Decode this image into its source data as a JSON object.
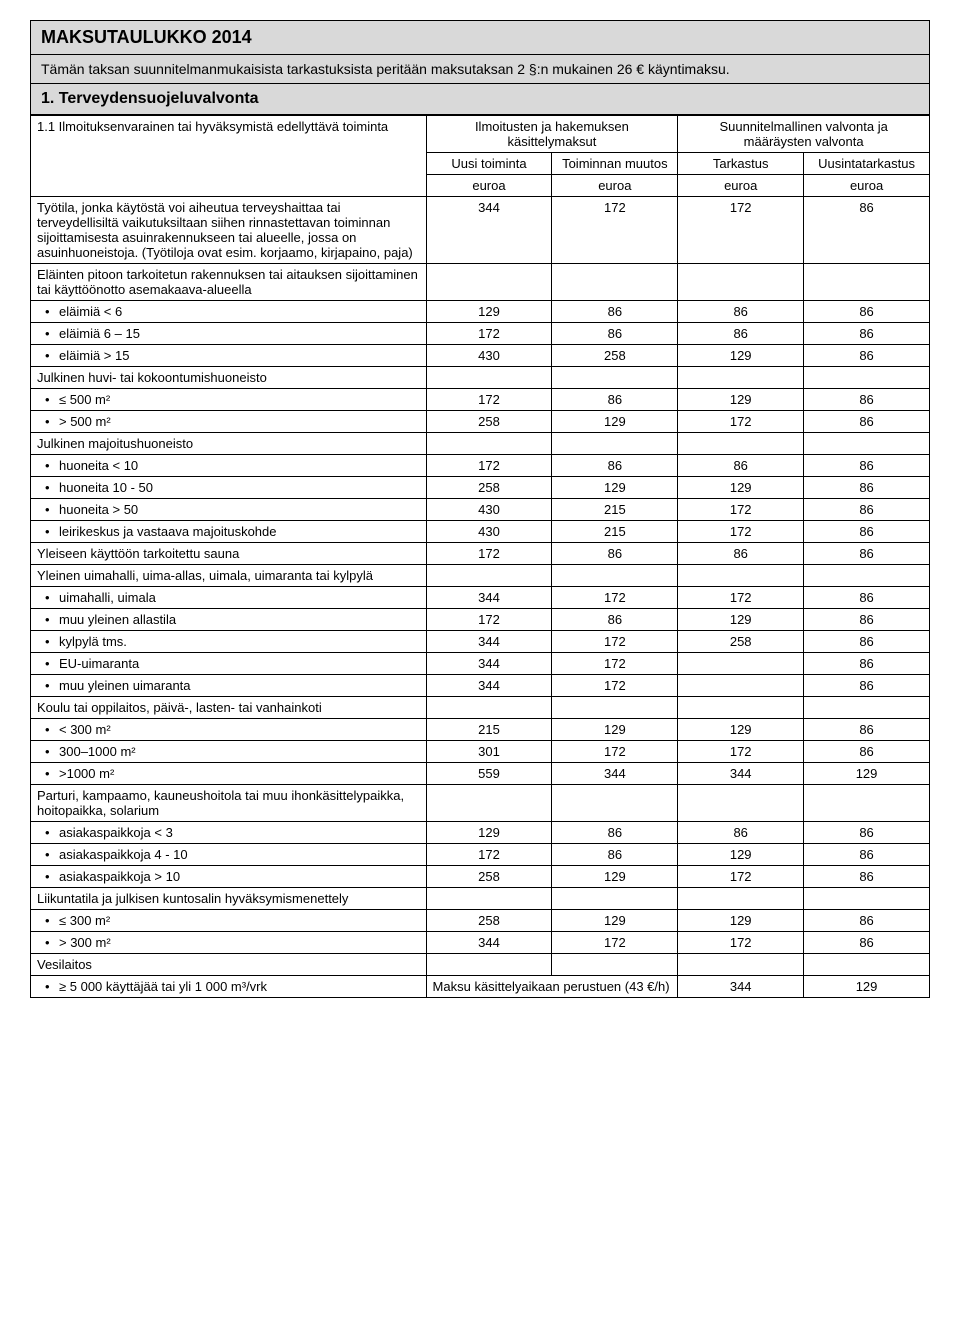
{
  "title": "MAKSUTAULUKKO 2014",
  "intro": "Tämän taksan suunnitelmanmukaisista tarkastuksista peritään maksutaksan 2 §:n mukainen 26 € käyntimaksu.",
  "section_heading": "1. Terveydensuojeluvalvonta",
  "table": {
    "head": {
      "left_top": "1.1 Ilmoituksenvarainen tai hyväksymistä edellyttävä toiminta",
      "mid_top": "Ilmoitusten ja hakemuksen käsittelymaksut",
      "right_top": "Suunnitelmallinen valvonta ja määräysten valvonta",
      "mid_l": "Uusi toiminta",
      "mid_r": "Toiminnan muutos",
      "right_l": "Tarkastus",
      "right_r": "Uusintatarkastus",
      "unit": "euroa"
    },
    "rows": [
      {
        "type": "data",
        "label": "Työtila, jonka käytöstä voi aiheutua terveyshaittaa tai terveydellisiltä vaikutuksiltaan siihen rinnastettavan toiminnan sijoittamisesta asuinrakennukseen tai alueelle, jossa on asuinhuoneistoja. (Työtiloja ovat esim. korjaamo, kirjapaino, paja)",
        "v": [
          "344",
          "172",
          "172",
          "86"
        ]
      },
      {
        "type": "group",
        "label": "Eläinten pitoon tarkoitetun rakennuksen tai aitauksen sijoittaminen tai käyttöönotto asemakaava-alueella"
      },
      {
        "type": "bullet",
        "label": "eläimiä < 6",
        "v": [
          "129",
          "86",
          "86",
          "86"
        ]
      },
      {
        "type": "bullet",
        "label": "eläimiä 6 – 15",
        "v": [
          "172",
          "86",
          "86",
          "86"
        ]
      },
      {
        "type": "bullet",
        "label": "eläimiä > 15",
        "v": [
          "430",
          "258",
          "129",
          "86"
        ]
      },
      {
        "type": "group",
        "label": "Julkinen huvi- tai kokoontumishuoneisto"
      },
      {
        "type": "bullet",
        "label": "≤ 500 m²",
        "v": [
          "172",
          "86",
          "129",
          "86"
        ]
      },
      {
        "type": "bullet",
        "label": "> 500 m²",
        "v": [
          "258",
          "129",
          "172",
          "86"
        ]
      },
      {
        "type": "group",
        "label": "Julkinen majoitushuoneisto"
      },
      {
        "type": "bullet",
        "label": "huoneita < 10",
        "v": [
          "172",
          "86",
          "86",
          "86"
        ]
      },
      {
        "type": "bullet",
        "label": "huoneita 10 - 50",
        "v": [
          "258",
          "129",
          "129",
          "86"
        ]
      },
      {
        "type": "bullet",
        "label": "huoneita > 50",
        "v": [
          "430",
          "215",
          "172",
          "86"
        ]
      },
      {
        "type": "bullet",
        "label": "leirikeskus ja vastaava majoituskohde",
        "v": [
          "430",
          "215",
          "172",
          "86"
        ]
      },
      {
        "type": "data",
        "label": "Yleiseen käyttöön tarkoitettu sauna",
        "v": [
          "172",
          "86",
          "86",
          "86"
        ]
      },
      {
        "type": "group",
        "label": "Yleinen uimahalli, uima-allas, uimala, uimaranta tai kylpylä"
      },
      {
        "type": "bullet",
        "label": "uimahalli, uimala",
        "v": [
          "344",
          "172",
          "172",
          "86"
        ]
      },
      {
        "type": "bullet",
        "label": "muu yleinen allastila",
        "v": [
          "172",
          "86",
          "129",
          "86"
        ]
      },
      {
        "type": "bullet",
        "label": "kylpylä tms.",
        "v": [
          "344",
          "172",
          "258",
          "86"
        ]
      },
      {
        "type": "bullet",
        "label": "EU-uimaranta",
        "v": [
          "344",
          "172",
          "",
          "86"
        ]
      },
      {
        "type": "bullet",
        "label": "muu yleinen uimaranta",
        "v": [
          "344",
          "172",
          "",
          "86"
        ]
      },
      {
        "type": "group",
        "label": "Koulu tai oppilaitos, päivä-, lasten- tai vanhainkoti"
      },
      {
        "type": "bullet",
        "label": "< 300 m²",
        "v": [
          "215",
          "129",
          "129",
          "86"
        ]
      },
      {
        "type": "bullet",
        "label": "300–1000 m²",
        "v": [
          "301",
          "172",
          "172",
          "86"
        ]
      },
      {
        "type": "bullet",
        "label": ">1000 m²",
        "v": [
          "559",
          "344",
          "344",
          "129"
        ]
      },
      {
        "type": "group",
        "label": "Parturi, kampaamo, kauneushoitola tai muu ihonkäsittelypaikka, hoitopaikka, solarium"
      },
      {
        "type": "bullet",
        "label": "asiakaspaikkoja < 3",
        "v": [
          "129",
          "86",
          "86",
          "86"
        ]
      },
      {
        "type": "bullet",
        "label": "asiakaspaikkoja 4 - 10",
        "v": [
          "172",
          "86",
          "129",
          "86"
        ]
      },
      {
        "type": "bullet",
        "label": "asiakaspaikkoja > 10",
        "v": [
          "258",
          "129",
          "172",
          "86"
        ]
      },
      {
        "type": "group",
        "label": "Liikuntatila ja julkisen kuntosalin hyväksymismenettely"
      },
      {
        "type": "bullet",
        "label": "≤ 300 m²",
        "v": [
          "258",
          "129",
          "129",
          "86"
        ]
      },
      {
        "type": "bullet",
        "label": "> 300 m²",
        "v": [
          "344",
          "172",
          "172",
          "86"
        ]
      },
      {
        "type": "group",
        "label": "Vesilaitos"
      },
      {
        "type": "bullet_special",
        "label": "≥ 5 000 käyttäjää tai yli 1 000 m³/vrk",
        "note": "Maksu käsittelyaikaan perustuen (43 €/h)",
        "v": [
          "344",
          "129"
        ]
      }
    ]
  }
}
